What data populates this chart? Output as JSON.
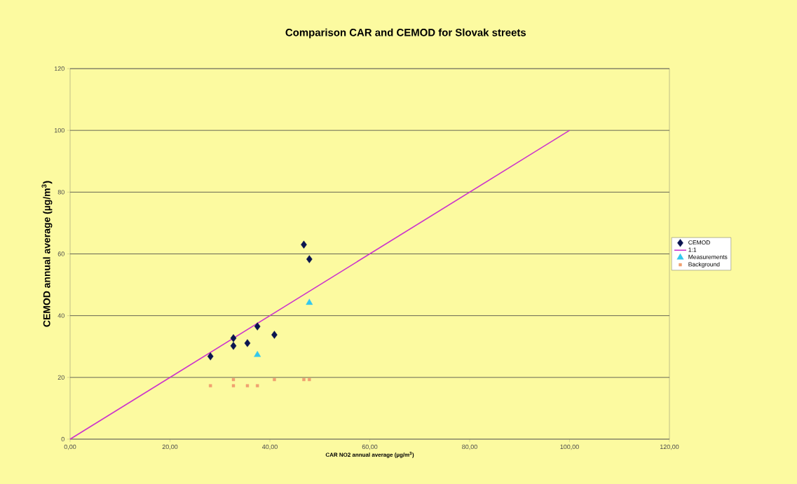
{
  "chart_data": {
    "type": "scatter",
    "title": "Comparison CAR and CEMOD for Slovak streets",
    "xlabel": "CAR NO2 annual average (µg/m$^{3}$)",
    "ylabel": "CEMOD annual average (µg/m$^{3}$)",
    "xlim": [
      0,
      120
    ],
    "ylim": [
      0,
      120
    ],
    "xticks": [
      {
        "value": 0,
        "label": "0,00"
      },
      {
        "value": 20,
        "label": "20,00"
      },
      {
        "value": 40,
        "label": "40,00"
      },
      {
        "value": 60,
        "label": "60,00"
      },
      {
        "value": 80,
        "label": "80,00"
      },
      {
        "value": 100,
        "label": "100,00"
      },
      {
        "value": 120,
        "label": "120,00"
      }
    ],
    "yticks": [
      0,
      20,
      40,
      60,
      80,
      100,
      120
    ],
    "grid": "y",
    "legend": "right",
    "series": [
      {
        "name": "CEMOD",
        "marker": "diamond",
        "color": "#0a1450",
        "x": [
          28.1,
          32.7,
          32.7,
          35.5,
          37.5,
          40.9,
          46.8,
          47.9
        ],
        "values": [
          26.8,
          32.7,
          30.2,
          31.1,
          36.5,
          33.8,
          63.0,
          58.3
        ]
      },
      {
        "name": "1:1",
        "type": "line",
        "marker": "none",
        "color": "#cc33cc",
        "x": [
          0,
          100
        ],
        "values": [
          0,
          100
        ]
      },
      {
        "name": "Measurements",
        "marker": "triangle",
        "color": "#33c8ee",
        "x": [
          37.5,
          47.9
        ],
        "values": [
          27.3,
          44.2
        ]
      },
      {
        "name": "Background",
        "marker": "square",
        "color": "#f0a070",
        "x": [
          28.1,
          32.7,
          32.7,
          35.5,
          37.5,
          40.9,
          46.8,
          47.9
        ],
        "values": [
          17.3,
          19.3,
          17.3,
          17.3,
          17.3,
          19.3,
          19.3,
          19.3
        ]
      }
    ]
  }
}
